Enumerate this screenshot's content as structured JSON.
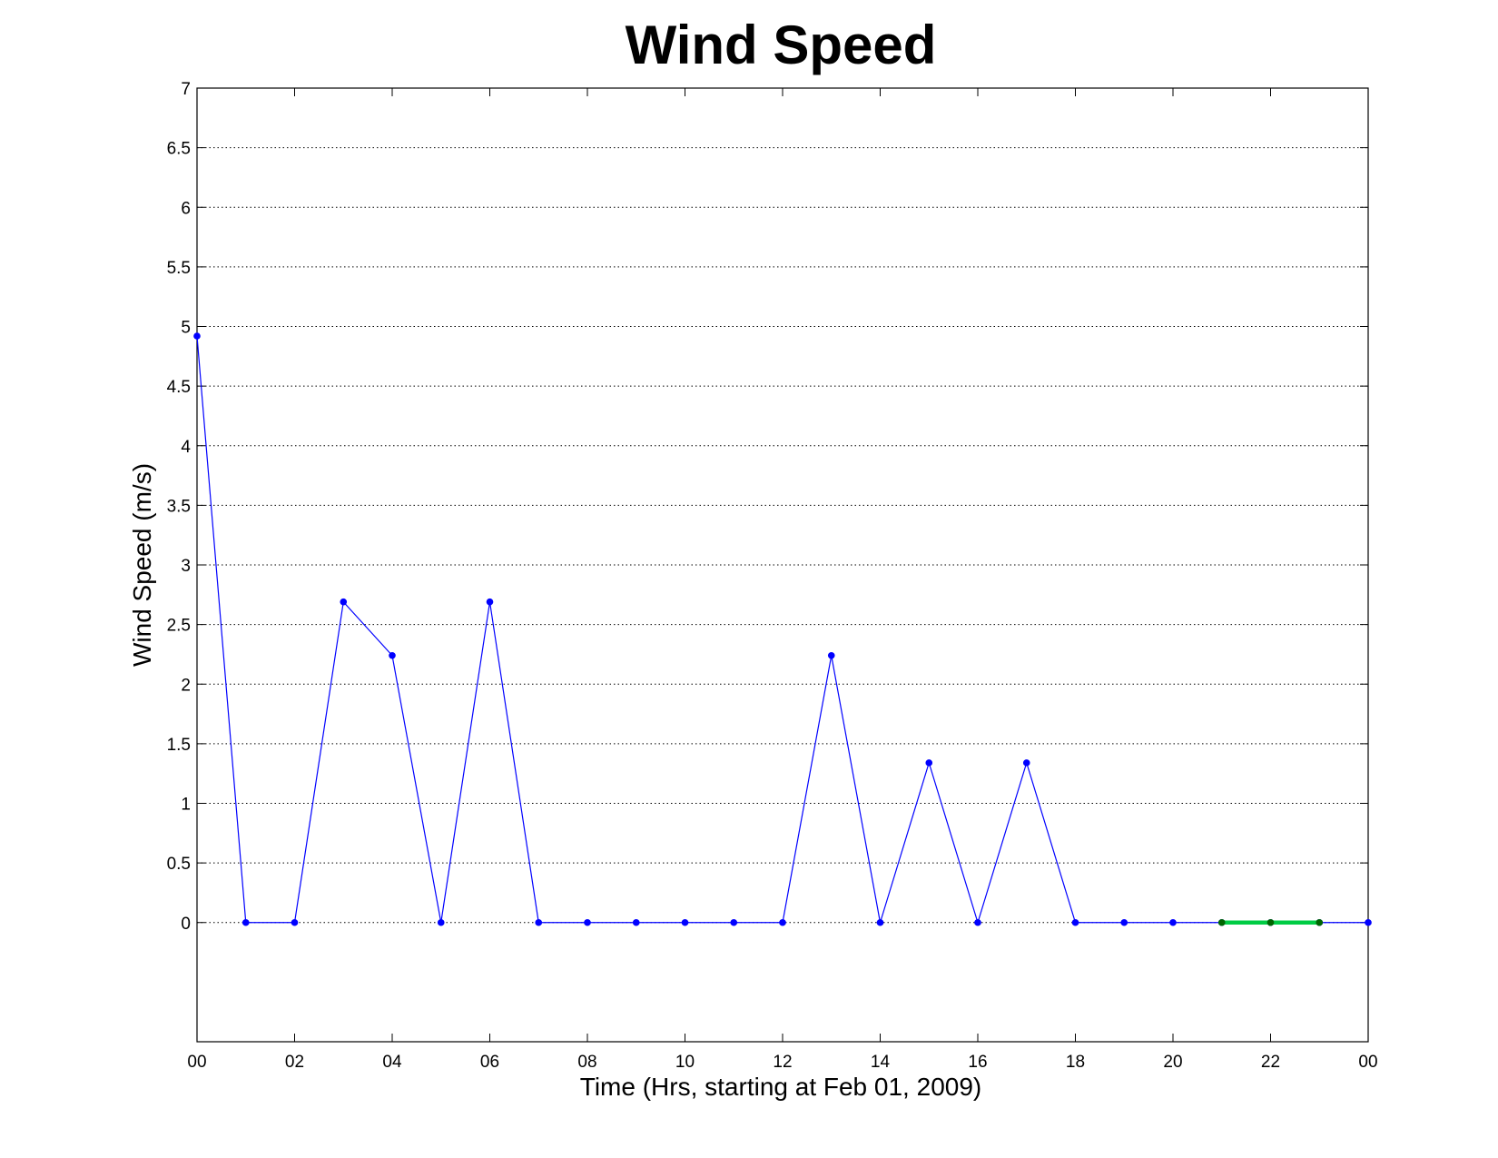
{
  "chart_data": {
    "type": "line",
    "title": "Wind Speed",
    "xlabel": "Time (Hrs, starting at Feb 01, 2009)",
    "ylabel": "Wind Speed (m/s)",
    "x_tick_labels": [
      "00",
      "02",
      "04",
      "06",
      "08",
      "10",
      "12",
      "14",
      "16",
      "18",
      "20",
      "22",
      "00"
    ],
    "y_tick_labels": [
      "0",
      "0.5",
      "1",
      "1.5",
      "2",
      "2.5",
      "3",
      "3.5",
      "4",
      "4.5",
      "5",
      "5.5",
      "6",
      "6.5",
      "7"
    ],
    "xlim": [
      0,
      24
    ],
    "ylim": [
      -1,
      7
    ],
    "grid": "horizontal dotted",
    "series": [
      {
        "color": "#0000ff",
        "x": [
          0,
          1,
          2,
          3,
          4,
          5,
          6,
          7,
          8,
          9,
          10,
          11,
          12,
          13,
          14,
          15,
          16,
          17,
          18,
          19,
          20,
          21,
          22,
          23,
          24
        ],
        "values": [
          4.92,
          0,
          0,
          2.69,
          2.24,
          0,
          2.69,
          0,
          0,
          0,
          0,
          0,
          0,
          2.24,
          0,
          1.34,
          0,
          1.34,
          0,
          0,
          0,
          0,
          0,
          0,
          0
        ]
      },
      {
        "color": "#00cc44",
        "marker_color": "#006600",
        "x": [
          21,
          22,
          23
        ],
        "values": [
          0,
          0,
          0
        ]
      }
    ]
  }
}
